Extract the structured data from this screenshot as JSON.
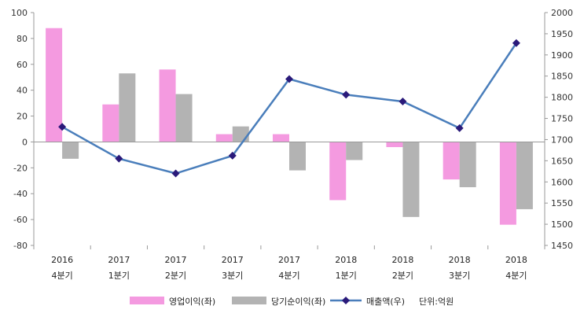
{
  "chart_data": {
    "type": "bar+line",
    "categories": [
      [
        "2016",
        "4분기"
      ],
      [
        "2017",
        "1분기"
      ],
      [
        "2017",
        "2분기"
      ],
      [
        "2017",
        "3분기"
      ],
      [
        "2017",
        "4분기"
      ],
      [
        "2018",
        "1분기"
      ],
      [
        "2018",
        "2분기"
      ],
      [
        "2018",
        "3분기"
      ],
      [
        "2018",
        "4분기"
      ]
    ],
    "series": [
      {
        "name": "영업이익(좌)",
        "kind": "bar",
        "axis": "left",
        "color": "#f49ae0",
        "values": [
          88,
          29,
          56,
          6,
          6,
          -45,
          -4,
          -29,
          -64
        ]
      },
      {
        "name": "당기순이익(좌)",
        "kind": "bar",
        "axis": "left",
        "color": "#b3b3b3",
        "values": [
          -13,
          53,
          37,
          12,
          -22,
          -14,
          -58,
          -35,
          -52
        ]
      },
      {
        "name": "매출액(우)",
        "kind": "line",
        "axis": "right",
        "color": "#4a7ebb",
        "marker_color": "#2a1a7a",
        "values": [
          1730,
          1655,
          1620,
          1662,
          1843,
          1806,
          1790,
          1727,
          1928
        ]
      }
    ],
    "left_axis": {
      "min": -80,
      "max": 100,
      "step": 20,
      "ticks": [
        "100",
        "80",
        "60",
        "40",
        "20",
        "0",
        "-20",
        "-40",
        "-60",
        "-80"
      ]
    },
    "right_axis": {
      "min": 1450,
      "max": 2000,
      "step": 50,
      "ticks": [
        "2000",
        "1950",
        "1900",
        "1850",
        "1800",
        "1750",
        "1700",
        "1650",
        "1600",
        "1550",
        "1500",
        "1450"
      ]
    },
    "legend_position": "bottom",
    "unit_note": "단위:억원",
    "grid": false
  }
}
